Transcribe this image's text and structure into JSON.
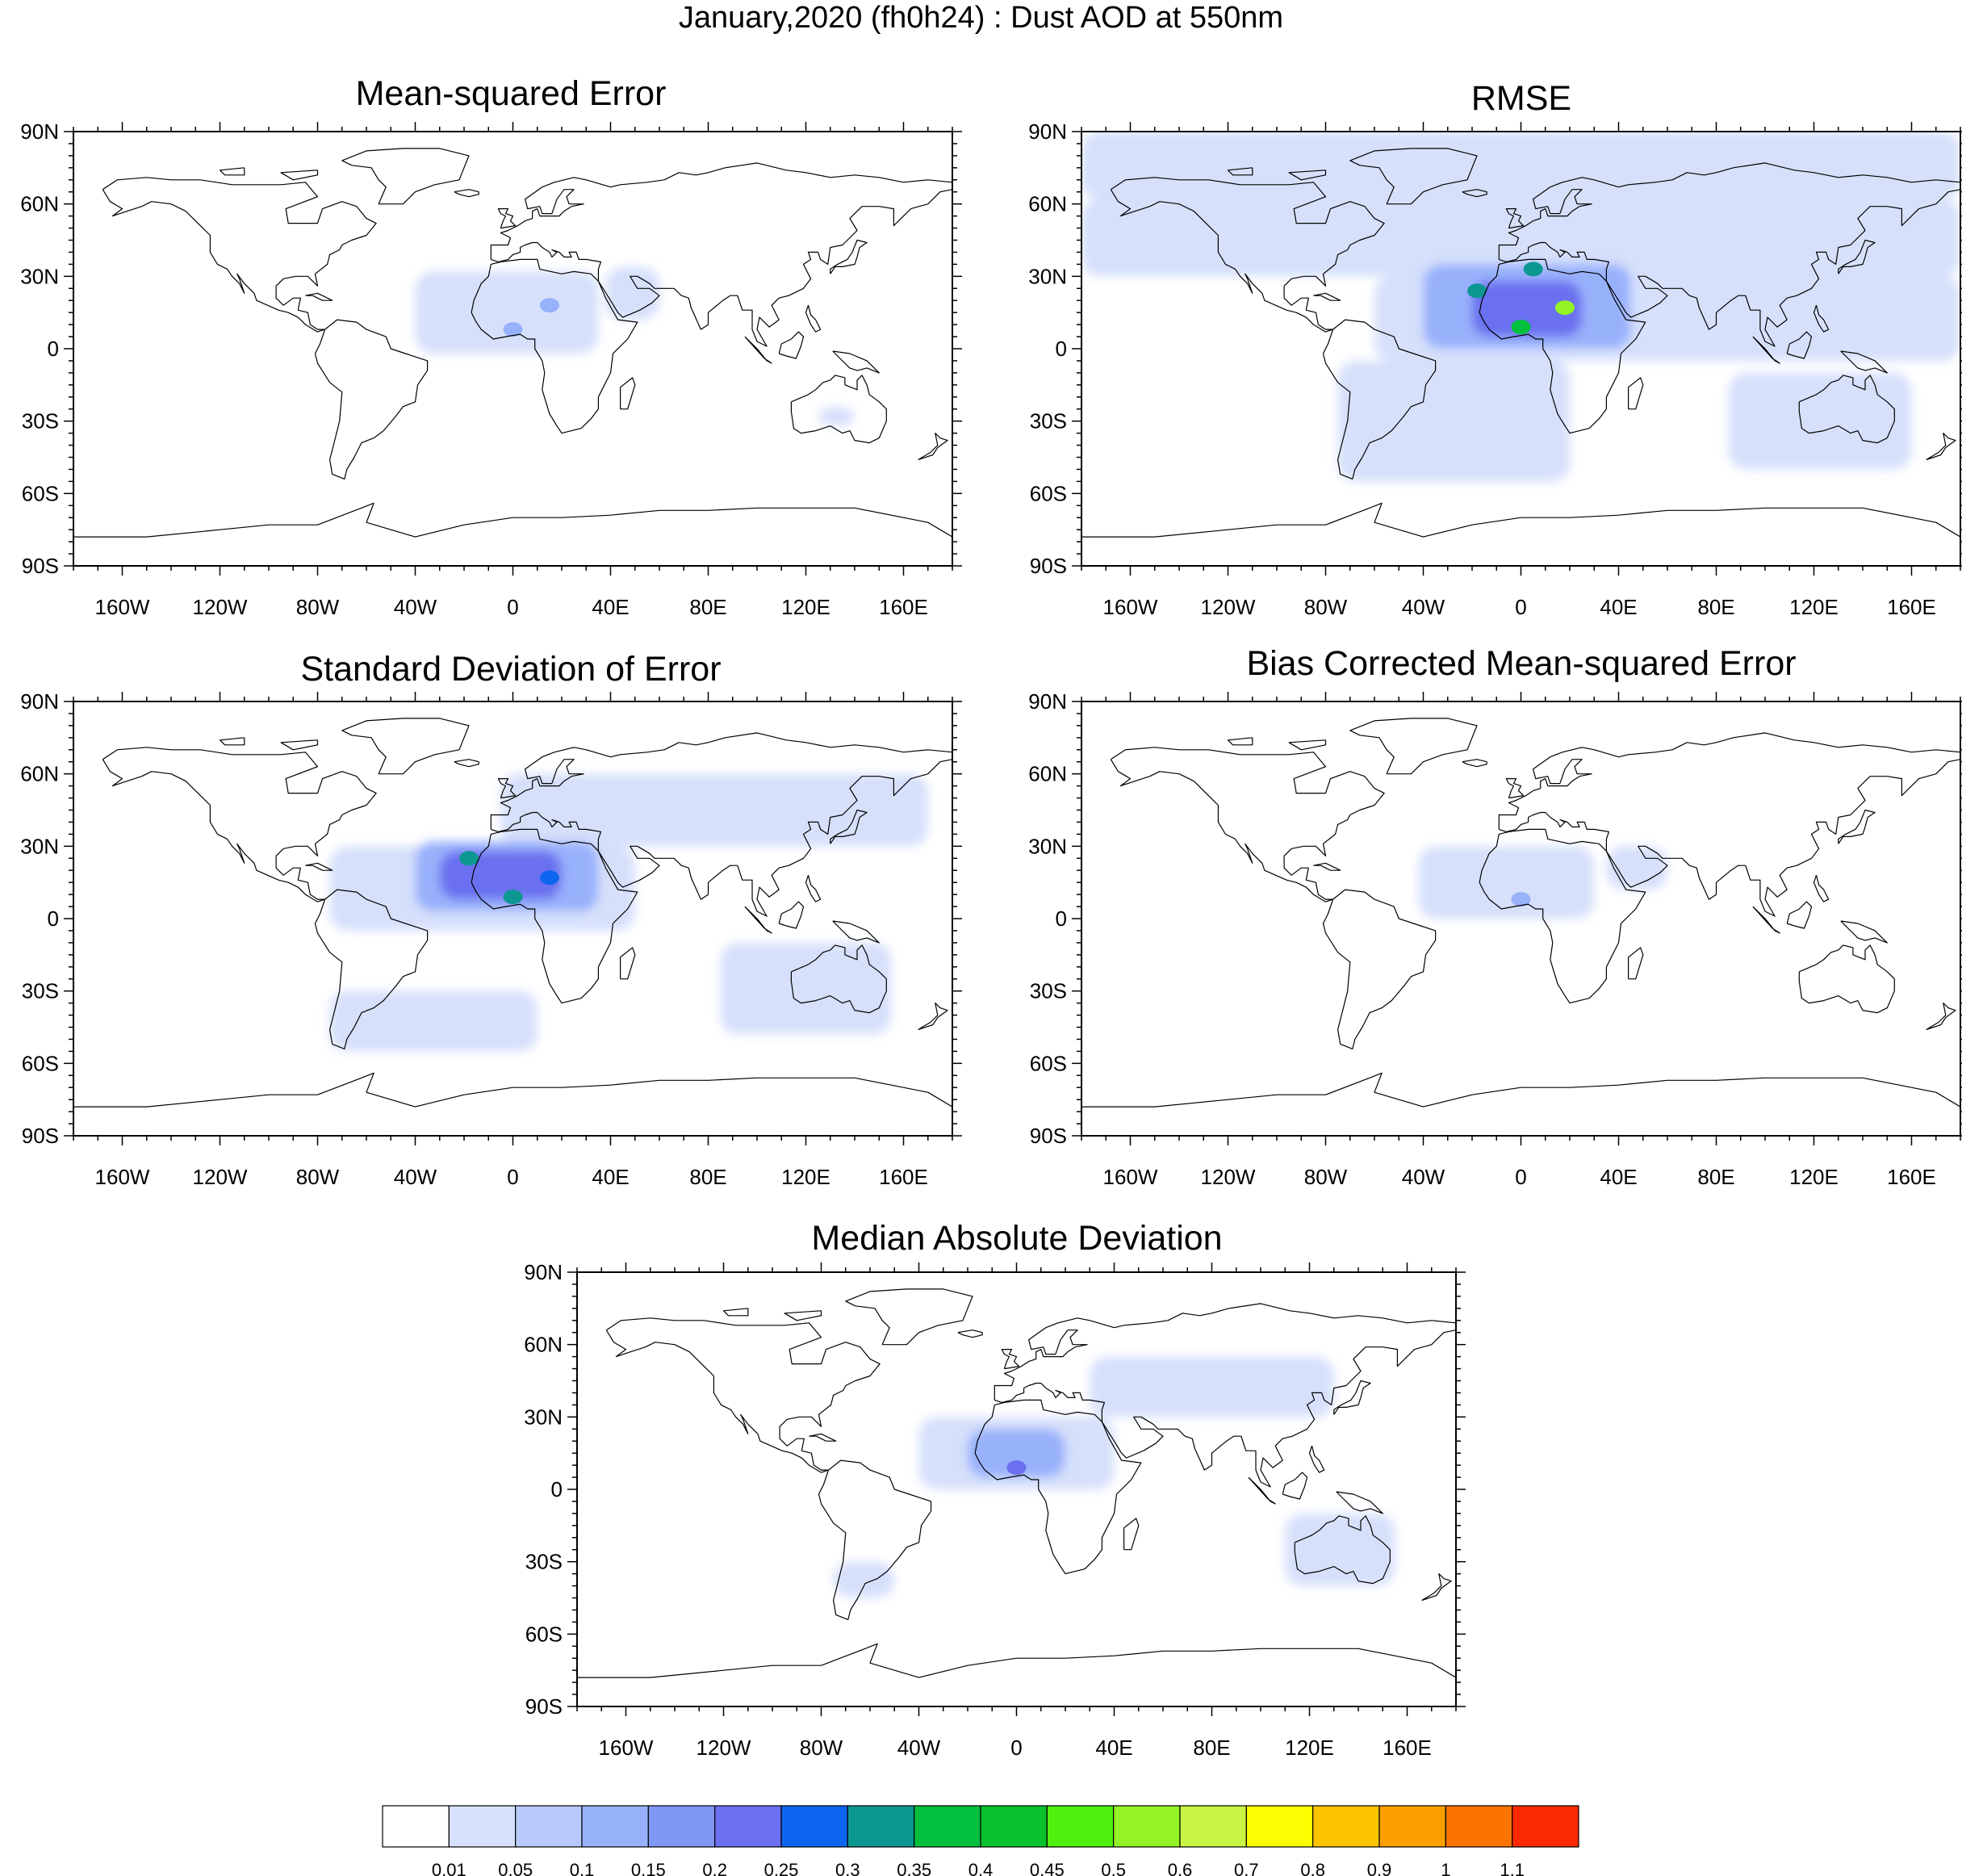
{
  "main_title": "January,2020 (fh0h24) : Dust AOD at 550nm",
  "colors": {
    "ocean": "#ffffff",
    "coast": "#000000",
    "levels": [
      "#ffffff",
      "#d6e0fb",
      "#b7c9fb",
      "#98b1fb",
      "#8097f6",
      "#6a70ef",
      "#0e66f0",
      "#0d9791",
      "#00c03e",
      "#08c12d",
      "#4ef10e",
      "#94f325",
      "#c9f545",
      "#fbfd00",
      "#fbc300",
      "#fba000",
      "#fb7300",
      "#fb2a00"
    ]
  },
  "colorbar": {
    "labels": [
      "0.01",
      "0.05",
      "0.1",
      "0.15",
      "0.2",
      "0.25",
      "0.3",
      "0.35",
      "0.4",
      "0.45",
      "0.5",
      "0.6",
      "0.7",
      "0.8",
      "0.9",
      "1",
      "1.1"
    ]
  },
  "axes": {
    "lon_labels": [
      "160W",
      "120W",
      "80W",
      "40W",
      "0",
      "40E",
      "80E",
      "120E",
      "160E"
    ],
    "lon_values": [
      -160,
      -120,
      -80,
      -40,
      0,
      40,
      80,
      120,
      160
    ],
    "lat_labels": [
      "90N",
      "60N",
      "30N",
      "0",
      "30S",
      "60S",
      "90S"
    ],
    "lat_values": [
      90,
      60,
      30,
      0,
      -30,
      -60,
      -90
    ]
  },
  "chart_data": [
    {
      "type": "heatmap",
      "title": "Mean-squared Error",
      "xlim": [
        -180,
        180
      ],
      "ylim": [
        -90,
        90
      ],
      "regions": [
        {
          "name": "saharan-outflow",
          "lon": [
            -40,
            35
          ],
          "lat": [
            -2,
            32
          ],
          "level": 1
        },
        {
          "name": "arabia",
          "lon": [
            38,
            60
          ],
          "lat": [
            12,
            34
          ],
          "level": 1
        },
        {
          "name": "australia-patch",
          "lon": [
            125,
            140
          ],
          "lat": [
            -32,
            -24
          ],
          "level": 1
        }
      ],
      "hotspots": [
        {
          "lon": 15,
          "lat": 18,
          "level": 3
        },
        {
          "lon": 0,
          "lat": 8,
          "level": 3
        }
      ]
    },
    {
      "type": "heatmap",
      "title": "RMSE",
      "xlim": [
        -180,
        180
      ],
      "ylim": [
        -90,
        90
      ],
      "regions": [
        {
          "name": "arctic-band",
          "lon": [
            -180,
            180
          ],
          "lat": [
            62,
            90
          ],
          "level": 1
        },
        {
          "name": "northern-mid-lat",
          "lon": [
            -180,
            180
          ],
          "lat": [
            30,
            62
          ],
          "level": 1
        },
        {
          "name": "atlantic-tropics",
          "lon": [
            -60,
            180
          ],
          "lat": [
            -5,
            30
          ],
          "level": 1
        },
        {
          "name": "south-atlantic",
          "lon": [
            -75,
            20
          ],
          "lat": [
            -55,
            -5
          ],
          "level": 1
        },
        {
          "name": "australia",
          "lon": [
            85,
            160
          ],
          "lat": [
            -50,
            -10
          ],
          "level": 1
        },
        {
          "name": "sahara",
          "lon": [
            -40,
            45
          ],
          "lat": [
            0,
            35
          ],
          "level": 3
        },
        {
          "name": "sahara-core",
          "lon": [
            -20,
            25
          ],
          "lat": [
            5,
            28
          ],
          "level": 5
        }
      ],
      "hotspots": [
        {
          "lon": 18,
          "lat": 17,
          "level": 11
        },
        {
          "lon": -18,
          "lat": 24,
          "level": 7
        },
        {
          "lon": 0,
          "lat": 9,
          "level": 8
        },
        {
          "lon": 5,
          "lat": 33,
          "level": 7
        }
      ]
    },
    {
      "type": "heatmap",
      "title": "Standard Deviation of Error",
      "xlim": [
        -180,
        180
      ],
      "ylim": [
        -90,
        90
      ],
      "regions": [
        {
          "name": "eurasia",
          "lon": [
            -5,
            170
          ],
          "lat": [
            30,
            60
          ],
          "level": 1
        },
        {
          "name": "atlantic-tropics",
          "lon": [
            -75,
            50
          ],
          "lat": [
            -5,
            30
          ],
          "level": 1
        },
        {
          "name": "south-atlantic",
          "lon": [
            -75,
            10
          ],
          "lat": [
            -55,
            -30
          ],
          "level": 1
        },
        {
          "name": "australia",
          "lon": [
            85,
            155
          ],
          "lat": [
            -48,
            -10
          ],
          "level": 1
        },
        {
          "name": "sahara",
          "lon": [
            -40,
            35
          ],
          "lat": [
            3,
            32
          ],
          "level": 3
        },
        {
          "name": "sahara-core",
          "lon": [
            -30,
            20
          ],
          "lat": [
            8,
            28
          ],
          "level": 5
        }
      ],
      "hotspots": [
        {
          "lon": 0,
          "lat": 9,
          "level": 7
        },
        {
          "lon": -18,
          "lat": 25,
          "level": 7
        },
        {
          "lon": 15,
          "lat": 17,
          "level": 6
        }
      ]
    },
    {
      "type": "heatmap",
      "title": "Bias Corrected Mean-squared Error",
      "xlim": [
        -180,
        180
      ],
      "ylim": [
        -90,
        90
      ],
      "regions": [
        {
          "name": "saharan-outflow",
          "lon": [
            -42,
            30
          ],
          "lat": [
            0,
            30
          ],
          "level": 1
        },
        {
          "name": "arabia",
          "lon": [
            35,
            60
          ],
          "lat": [
            12,
            30
          ],
          "level": 1
        }
      ],
      "hotspots": [
        {
          "lon": 0,
          "lat": 8,
          "level": 3
        }
      ]
    },
    {
      "type": "heatmap",
      "title": "Median Absolute Deviation",
      "xlim": [
        -180,
        180
      ],
      "ylim": [
        -90,
        90
      ],
      "regions": [
        {
          "name": "eurasia",
          "lon": [
            30,
            130
          ],
          "lat": [
            30,
            55
          ],
          "level": 1
        },
        {
          "name": "atlantic-tropics",
          "lon": [
            -40,
            40
          ],
          "lat": [
            0,
            30
          ],
          "level": 1
        },
        {
          "name": "south-america",
          "lon": [
            -75,
            -50
          ],
          "lat": [
            -45,
            -30
          ],
          "level": 1
        },
        {
          "name": "australia",
          "lon": [
            110,
            155
          ],
          "lat": [
            -40,
            -10
          ],
          "level": 1
        },
        {
          "name": "sahara",
          "lon": [
            -20,
            20
          ],
          "lat": [
            5,
            25
          ],
          "level": 3
        }
      ],
      "hotspots": [
        {
          "lon": 0,
          "lat": 9,
          "level": 5
        }
      ]
    }
  ]
}
